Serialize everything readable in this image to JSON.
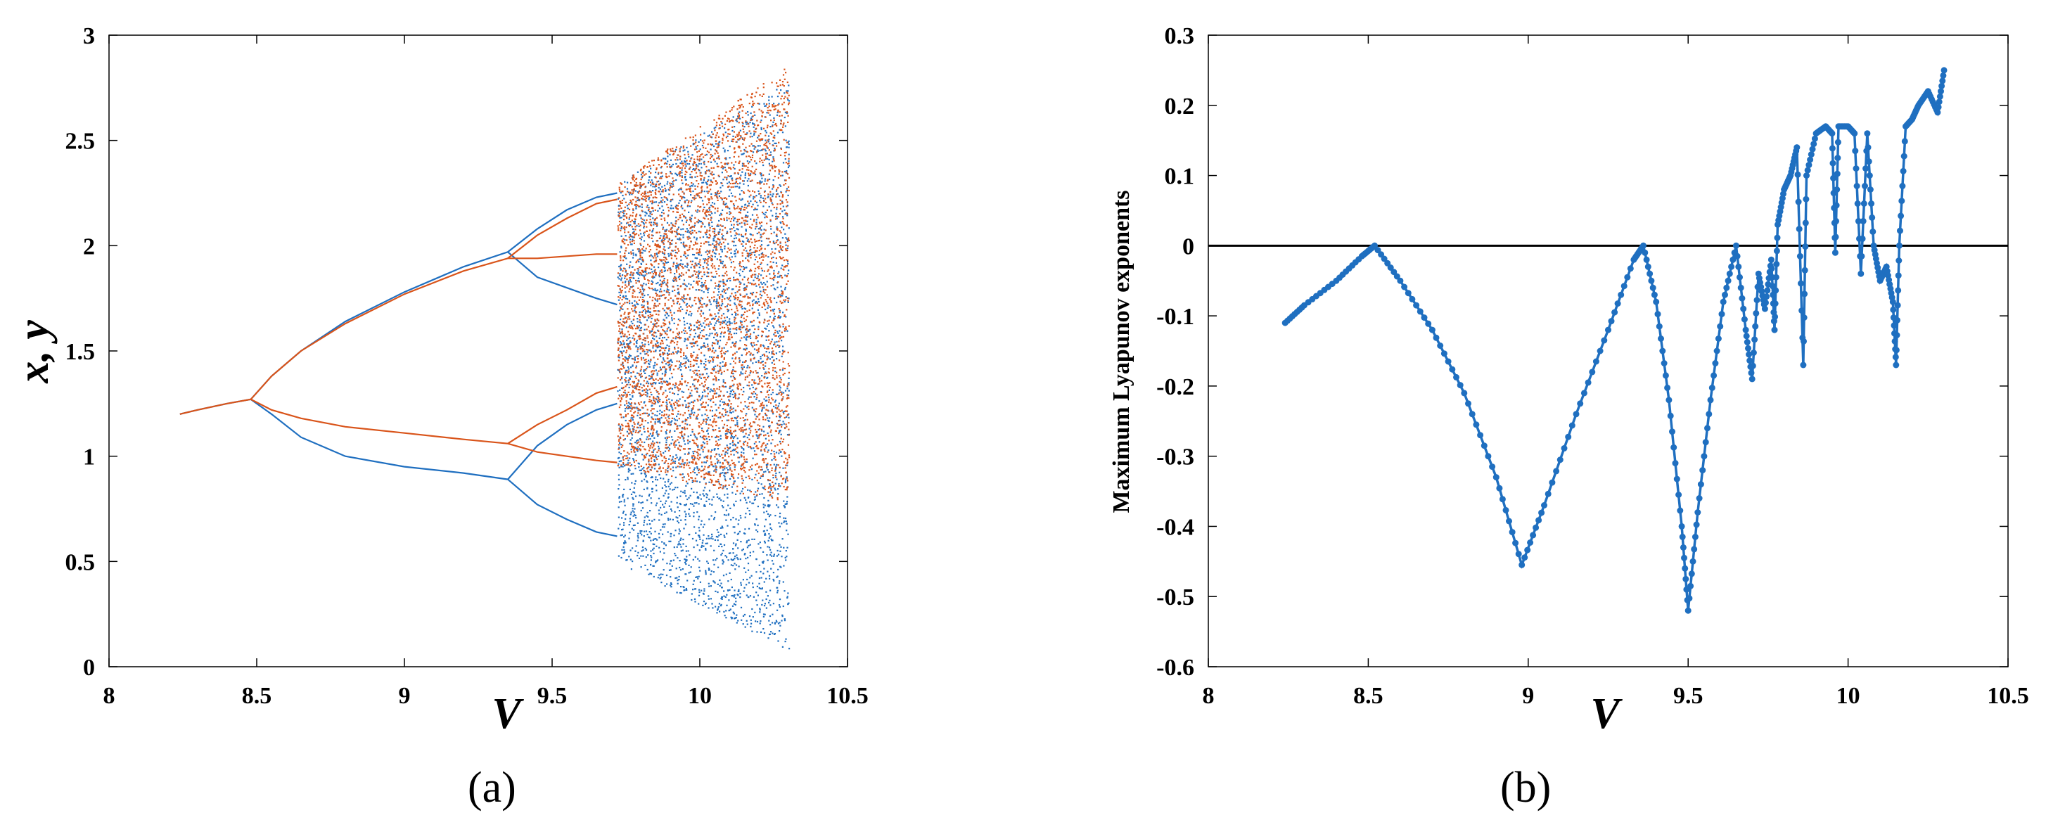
{
  "colors": {
    "blue": "#1f6fc0",
    "orange": "#d9541a",
    "axis": "#000000"
  },
  "panel_labels": {
    "a": "(a)",
    "b": "(b)"
  },
  "chart_data": [
    {
      "type": "scatter",
      "panel": "(a)",
      "title": "",
      "xlabel": "V",
      "ylabel": "x, y",
      "xlim": [
        8,
        10.5
      ],
      "ylim": [
        0,
        3
      ],
      "xticks": [
        "8",
        "8.5",
        "9",
        "9.5",
        "10",
        "10.5"
      ],
      "yticks": [
        "0",
        "0.5",
        "1",
        "1.5",
        "2",
        "2.5",
        "3"
      ],
      "grid": false,
      "series": [
        {
          "color_ref": "blue",
          "branches": [
            [
              [
                8.24,
                1.2
              ],
              [
                8.3,
                1.22
              ],
              [
                8.4,
                1.25
              ],
              [
                8.48,
                1.27
              ],
              [
                8.55,
                1.2
              ],
              [
                8.65,
                1.09
              ],
              [
                8.8,
                1.0
              ],
              [
                9.0,
                0.95
              ],
              [
                9.2,
                0.92
              ],
              [
                9.35,
                0.89
              ],
              [
                9.45,
                0.77
              ],
              [
                9.55,
                0.7
              ],
              [
                9.65,
                0.64
              ],
              [
                9.72,
                0.62
              ]
            ],
            [
              [
                8.48,
                1.27
              ],
              [
                8.55,
                1.38
              ],
              [
                8.65,
                1.5
              ],
              [
                8.8,
                1.64
              ],
              [
                9.0,
                1.78
              ],
              [
                9.2,
                1.9
              ],
              [
                9.35,
                1.97
              ],
              [
                9.45,
                2.08
              ],
              [
                9.55,
                2.17
              ],
              [
                9.65,
                2.23
              ],
              [
                9.72,
                2.25
              ]
            ],
            [
              [
                9.35,
                0.89
              ],
              [
                9.45,
                1.05
              ],
              [
                9.55,
                1.15
              ],
              [
                9.65,
                1.22
              ],
              [
                9.72,
                1.25
              ]
            ],
            [
              [
                9.35,
                1.97
              ],
              [
                9.45,
                1.85
              ],
              [
                9.55,
                1.8
              ],
              [
                9.65,
                1.75
              ],
              [
                9.72,
                1.72
              ]
            ]
          ],
          "chaos_region": {
            "x_range": [
              9.72,
              10.3
            ],
            "y_min_start": 0.5,
            "y_min_end": 0.08,
            "y_max_start": 2.3,
            "y_max_end": 2.78
          }
        },
        {
          "color_ref": "orange",
          "branches": [
            [
              [
                8.24,
                1.2
              ],
              [
                8.3,
                1.22
              ],
              [
                8.4,
                1.25
              ],
              [
                8.48,
                1.27
              ],
              [
                8.55,
                1.22
              ],
              [
                8.65,
                1.18
              ],
              [
                8.8,
                1.14
              ],
              [
                9.0,
                1.11
              ],
              [
                9.2,
                1.08
              ],
              [
                9.35,
                1.06
              ],
              [
                9.45,
                1.02
              ],
              [
                9.55,
                1.0
              ],
              [
                9.65,
                0.98
              ],
              [
                9.72,
                0.97
              ]
            ],
            [
              [
                8.48,
                1.27
              ],
              [
                8.55,
                1.38
              ],
              [
                8.65,
                1.5
              ],
              [
                8.8,
                1.63
              ],
              [
                9.0,
                1.77
              ],
              [
                9.2,
                1.88
              ],
              [
                9.35,
                1.94
              ],
              [
                9.45,
                1.94
              ],
              [
                9.55,
                1.95
              ],
              [
                9.65,
                1.96
              ],
              [
                9.72,
                1.96
              ]
            ],
            [
              [
                9.35,
                1.06
              ],
              [
                9.45,
                1.15
              ],
              [
                9.55,
                1.22
              ],
              [
                9.65,
                1.3
              ],
              [
                9.72,
                1.33
              ]
            ],
            [
              [
                9.35,
                1.94
              ],
              [
                9.45,
                2.05
              ],
              [
                9.55,
                2.13
              ],
              [
                9.65,
                2.2
              ],
              [
                9.72,
                2.22
              ]
            ]
          ],
          "chaos_region": {
            "x_range": [
              9.72,
              10.3
            ],
            "y_min_start": 0.95,
            "y_min_end": 0.78,
            "y_max_start": 2.3,
            "y_max_end": 2.86
          }
        }
      ]
    },
    {
      "type": "line",
      "panel": "(b)",
      "title": "",
      "xlabel": "V",
      "ylabel": "Maximum Lyapunov exponents",
      "xlim": [
        8,
        10.5
      ],
      "ylim": [
        -0.6,
        0.3
      ],
      "xticks": [
        "8",
        "8.5",
        "9",
        "9.5",
        "10",
        "10.5"
      ],
      "yticks": [
        "-0.6",
        "-0.5",
        "-0.4",
        "-0.3",
        "-0.2",
        "-0.1",
        "0",
        "0.1",
        "0.2",
        "0.3"
      ],
      "grid": false,
      "reference_line_y": 0,
      "series": [
        {
          "color_ref": "blue",
          "points": [
            [
              8.24,
              -0.11
            ],
            [
              8.3,
              -0.085
            ],
            [
              8.4,
              -0.05
            ],
            [
              8.48,
              -0.015
            ],
            [
              8.52,
              0.0
            ],
            [
              8.6,
              -0.05
            ],
            [
              8.7,
              -0.12
            ],
            [
              8.8,
              -0.21
            ],
            [
              8.9,
              -0.33
            ],
            [
              8.98,
              -0.455
            ],
            [
              9.05,
              -0.37
            ],
            [
              9.15,
              -0.24
            ],
            [
              9.25,
              -0.12
            ],
            [
              9.33,
              -0.02
            ],
            [
              9.36,
              0.0
            ],
            [
              9.4,
              -0.08
            ],
            [
              9.44,
              -0.22
            ],
            [
              9.48,
              -0.4
            ],
            [
              9.5,
              -0.52
            ],
            [
              9.53,
              -0.38
            ],
            [
              9.57,
              -0.22
            ],
            [
              9.61,
              -0.08
            ],
            [
              9.65,
              0.0
            ],
            [
              9.68,
              -0.12
            ],
            [
              9.7,
              -0.19
            ],
            [
              9.72,
              -0.04
            ],
            [
              9.74,
              -0.09
            ],
            [
              9.76,
              -0.02
            ],
            [
              9.77,
              -0.12
            ],
            [
              9.78,
              0.03
            ],
            [
              9.8,
              0.08
            ],
            [
              9.82,
              0.1
            ],
            [
              9.84,
              0.14
            ],
            [
              9.86,
              -0.17
            ],
            [
              9.87,
              0.1
            ],
            [
              9.9,
              0.16
            ],
            [
              9.93,
              0.17
            ],
            [
              9.95,
              0.16
            ],
            [
              9.96,
              -0.01
            ],
            [
              9.97,
              0.17
            ],
            [
              10.0,
              0.17
            ],
            [
              10.02,
              0.16
            ],
            [
              10.04,
              -0.04
            ],
            [
              10.06,
              0.16
            ],
            [
              10.08,
              0.0
            ],
            [
              10.1,
              -0.05
            ],
            [
              10.12,
              -0.03
            ],
            [
              10.14,
              -0.08
            ],
            [
              10.15,
              -0.17
            ],
            [
              10.16,
              0.0
            ],
            [
              10.18,
              0.17
            ],
            [
              10.2,
              0.18
            ],
            [
              10.22,
              0.2
            ],
            [
              10.25,
              0.22
            ],
            [
              10.28,
              0.19
            ],
            [
              10.3,
              0.25
            ]
          ]
        }
      ]
    }
  ]
}
